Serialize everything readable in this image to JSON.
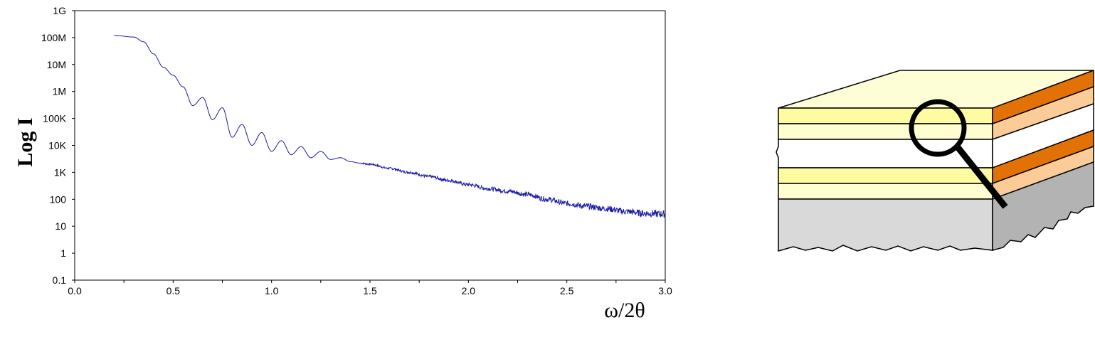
{
  "chart_data": {
    "type": "line",
    "xlabel": "ω/2θ",
    "ylabel": "Log I",
    "xlim": [
      0.0,
      3.0
    ],
    "ylim_log": [
      0.1,
      1000000000
    ],
    "x_ticks": [
      "0.0",
      "0.5",
      "1.0",
      "1.5",
      "2.0",
      "2.5",
      "3.0"
    ],
    "x_tick_values": [
      0.0,
      0.5,
      1.0,
      1.5,
      2.0,
      2.5,
      3.0
    ],
    "y_ticks": [
      "0.1",
      "1",
      "10",
      "100",
      "1K",
      "10K",
      "100K",
      "1M",
      "10M",
      "100M",
      "1G"
    ],
    "y_tick_values": [
      0.1,
      1,
      10,
      100,
      1000,
      10000,
      100000,
      1000000,
      10000000,
      100000000,
      1000000000
    ],
    "y_scale": "log",
    "grid": false,
    "series": [
      {
        "color": "#1a1aa8",
        "x": [
          0.2,
          0.3,
          0.35,
          0.4,
          0.45,
          0.5,
          0.55,
          0.6,
          0.65,
          0.7,
          0.75,
          0.8,
          0.85,
          0.9,
          0.95,
          1.0,
          1.05,
          1.1,
          1.15,
          1.2,
          1.25,
          1.3,
          1.35,
          1.4,
          1.45,
          1.5,
          1.6,
          1.7,
          1.8,
          1.9,
          2.0,
          2.1,
          2.2,
          2.3,
          2.4,
          2.5,
          2.6,
          2.7,
          2.8,
          2.9,
          3.0
        ],
        "y": [
          120000000,
          105000000,
          70000000,
          25000000,
          8000000,
          4000000,
          1500000,
          300000,
          600000,
          90000,
          250000,
          20000,
          60000,
          10000,
          30000,
          6000,
          15000,
          4500,
          9000,
          3500,
          6000,
          3000,
          3500,
          2500,
          2200,
          2000,
          1400,
          1000,
          700,
          500,
          350,
          250,
          200,
          150,
          100,
          70,
          55,
          45,
          35,
          30,
          28
        ]
      }
    ]
  },
  "diagram": {
    "layer_colors": {
      "top_face": "#fefed6",
      "film_yellow": "#fdfca0",
      "film_pale": "#fefed0",
      "side_orange": "#e37206",
      "side_peach": "#fbcc98",
      "substrate_front": "#d9d9d9",
      "substrate_side": "#b3b3b3"
    },
    "icons": [
      "magnifier-icon"
    ]
  }
}
